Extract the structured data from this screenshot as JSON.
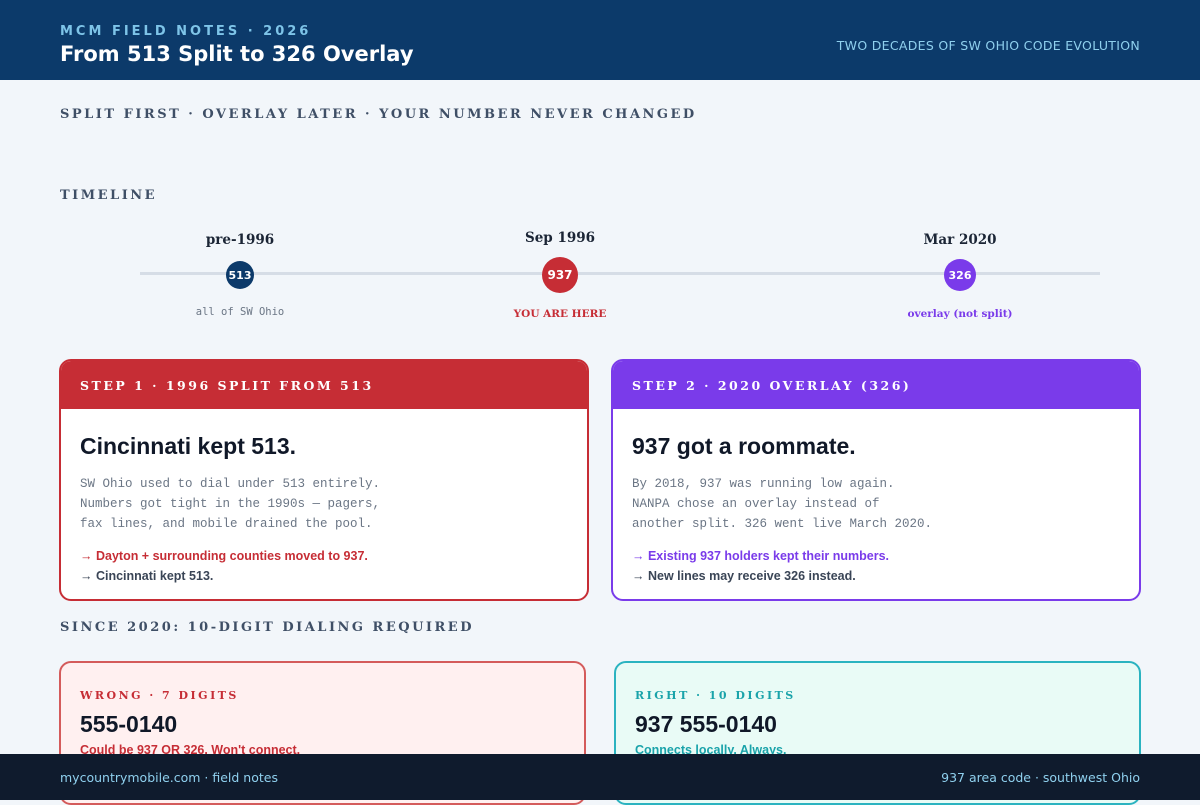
{
  "header": {
    "eyebrow": "MCM FIELD NOTES · 2026",
    "title": "From 513 Split to 326 Overlay",
    "tagline": "TWO DECADES OF SW OHIO CODE EVOLUTION"
  },
  "kicker": "SPLIT FIRST · OVERLAY LATER · YOUR NUMBER NEVER CHANGED",
  "timeline": {
    "heading": "TIMELINE",
    "items": [
      {
        "label": "pre-1996",
        "code": "513",
        "note": "all of SW Ohio",
        "color": "#0c3a6a"
      },
      {
        "label": "Sep 1996",
        "code": "937",
        "note": "YOU ARE HERE",
        "color": "#c62d35"
      },
      {
        "label": "Mar 2020",
        "code": "326",
        "note": "overlay (not split)",
        "color": "#7a3bea"
      }
    ]
  },
  "cards": [
    {
      "head": "STEP 1 · 1996 SPLIT FROM 513",
      "title": "Cincinnati kept 513.",
      "body": [
        "SW Ohio used to dial under 513 entirely.",
        "Numbers got tight in the 1990s — pagers,",
        "fax lines, and mobile drained the pool."
      ],
      "bullets": [
        "→ Dayton + surrounding counties moved to 937.",
        "→ Cincinnati kept 513."
      ]
    },
    {
      "head": "STEP 2 · 2020 OVERLAY (326)",
      "title": "937 got a roommate.",
      "body": [
        "By 2018, 937 was running low again.",
        "NANPA chose an overlay instead of",
        "another split. 326 went live March 2020."
      ],
      "bullets": [
        "→ Existing 937 holders kept their numbers.",
        "→ New lines may receive 326 instead."
      ]
    }
  ],
  "dialing": {
    "heading": "SINCE 2020: 10-DIGIT DIALING REQUIRED",
    "wrong": {
      "label": "WRONG · 7 DIGITS",
      "number": "555-0140",
      "note": "Could be 937 OR 326. Won't connect."
    },
    "right": {
      "label": "RIGHT · 10 DIGITS",
      "number": "937 555-0140",
      "note": "Connects locally. Always."
    }
  },
  "footer": {
    "left": "mycountrymobile.com · field notes",
    "right": "937 area code · southwest Ohio"
  }
}
